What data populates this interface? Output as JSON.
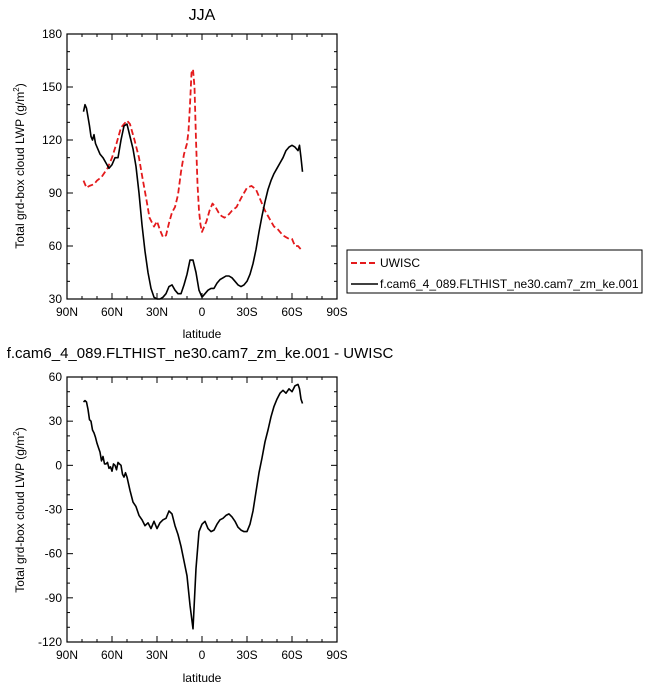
{
  "chart_data": [
    {
      "type": "line",
      "title": "JJA",
      "xlabel": "latitude",
      "ylabel_main": "Total grd-box cloud LWP (g/m",
      "ylabel_sup": "2",
      "ylabel_tail": ")",
      "xlim": [
        90,
        -90
      ],
      "ylim": [
        30,
        180
      ],
      "xticks": [
        {
          "v": 90,
          "label": "90N"
        },
        {
          "v": 60,
          "label": "60N"
        },
        {
          "v": 30,
          "label": "30N"
        },
        {
          "v": 0,
          "label": "0"
        },
        {
          "v": -30,
          "label": "30S"
        },
        {
          "v": -60,
          "label": "60S"
        },
        {
          "v": -90,
          "label": "90S"
        }
      ],
      "yticks": [
        30,
        60,
        90,
        120,
        150,
        180
      ],
      "legend": {
        "placement": "right"
      },
      "series": [
        {
          "name": "UWISC",
          "color": "#e41a1c",
          "dash": "dashed",
          "x": [
            79,
            77,
            75,
            72,
            70,
            67,
            63,
            60,
            57,
            54,
            52,
            50,
            48,
            45,
            42,
            40,
            37,
            35,
            32,
            30,
            28,
            26,
            24,
            22,
            20,
            18,
            16,
            14,
            12,
            10,
            9,
            8,
            7,
            6,
            5,
            4,
            3,
            2,
            1,
            0,
            -1,
            -3,
            -5,
            -7,
            -9,
            -11,
            -13,
            -15,
            -18,
            -20,
            -23,
            -26,
            -28,
            -30,
            -33,
            -36,
            -38,
            -40,
            -42,
            -44,
            -46,
            -48,
            -50,
            -52,
            -54,
            -56,
            -58,
            -60,
            -62,
            -64,
            -66,
            -67
          ],
          "y": [
            97,
            93,
            94,
            95,
            97,
            99,
            104,
            110,
            118,
            127,
            129,
            131,
            129,
            120,
            110,
            100,
            86,
            76,
            71,
            74,
            69,
            65,
            66,
            73,
            79,
            82,
            89,
            102,
            112,
            118,
            125,
            140,
            158,
            160,
            150,
            120,
            95,
            80,
            72,
            68,
            70,
            74,
            80,
            84,
            82,
            79,
            77,
            76,
            78,
            80,
            82,
            87,
            90,
            93,
            94,
            92,
            88,
            84,
            80,
            77,
            74,
            71,
            70,
            68,
            66,
            65,
            64,
            64,
            60,
            60,
            58,
            57
          ]
        },
        {
          "name": "f.cam6_4_089.FLTHIST_ne30.cam7_zm_ke.001",
          "color": "#000000",
          "dash": "solid",
          "x": [
            79,
            78,
            77,
            76,
            75,
            74,
            73,
            72,
            71,
            70,
            68,
            66,
            64,
            62,
            60,
            58,
            56,
            54,
            52,
            50,
            48,
            46,
            44,
            42,
            40,
            38,
            36,
            34,
            32,
            30,
            28,
            26,
            24,
            22,
            20,
            18,
            16,
            14,
            12,
            10,
            8,
            6,
            4,
            2,
            1,
            0,
            -2,
            -4,
            -6,
            -8,
            -10,
            -12,
            -14,
            -16,
            -18,
            -20,
            -22,
            -24,
            -26,
            -28,
            -30,
            -32,
            -34,
            -36,
            -38,
            -40,
            -42,
            -44,
            -46,
            -48,
            -50,
            -52,
            -54,
            -56,
            -58,
            -60,
            -62,
            -64,
            -65,
            -66,
            -67
          ],
          "y": [
            136,
            140,
            138,
            133,
            128,
            122,
            120,
            123,
            118,
            116,
            112,
            110,
            107,
            104,
            106,
            110,
            110,
            120,
            128,
            129,
            122,
            115,
            105,
            90,
            72,
            57,
            45,
            36,
            31,
            30,
            30,
            31,
            33,
            37,
            38,
            35,
            33,
            33,
            38,
            44,
            52,
            52,
            45,
            35,
            33,
            31,
            33,
            35,
            36,
            36,
            39,
            41,
            42,
            43,
            43,
            42,
            40,
            38,
            37,
            38,
            40,
            44,
            50,
            58,
            68,
            77,
            85,
            92,
            97,
            101,
            104,
            107,
            110,
            114,
            116,
            117,
            116,
            114,
            117,
            110,
            102
          ]
        }
      ]
    },
    {
      "type": "line",
      "title": "f.cam6_4_089.FLTHIST_ne30.cam7_zm_ke.001 - UWISC",
      "xlabel": "latitude",
      "ylabel_main": "Total grd-box cloud LWP (g/m",
      "ylabel_sup": "2",
      "ylabel_tail": ")",
      "xlim": [
        90,
        -90
      ],
      "ylim": [
        -120,
        60
      ],
      "xticks": [
        {
          "v": 90,
          "label": "90N"
        },
        {
          "v": 60,
          "label": "60N"
        },
        {
          "v": 30,
          "label": "30N"
        },
        {
          "v": 0,
          "label": "0"
        },
        {
          "v": -30,
          "label": "30S"
        },
        {
          "v": -60,
          "label": "60S"
        },
        {
          "v": -90,
          "label": "90S"
        }
      ],
      "yticks": [
        -120,
        -90,
        -60,
        -30,
        0,
        30,
        60
      ],
      "series": [
        {
          "color": "#000000",
          "dash": "solid",
          "x": [
            79,
            78,
            77,
            76,
            75,
            74,
            73,
            72,
            71,
            70,
            69,
            68,
            67,
            66,
            65,
            64,
            63,
            62,
            61,
            60,
            59,
            58,
            57,
            56,
            55,
            54,
            53,
            52,
            51,
            50,
            48,
            46,
            44,
            42,
            40,
            38,
            36,
            34,
            32,
            30,
            28,
            26,
            24,
            22,
            20,
            18,
            16,
            14,
            12,
            10,
            8,
            6,
            4,
            2,
            0,
            -2,
            -4,
            -6,
            -8,
            -10,
            -12,
            -14,
            -16,
            -18,
            -20,
            -22,
            -24,
            -26,
            -28,
            -30,
            -32,
            -34,
            -36,
            -38,
            -40,
            -42,
            -44,
            -46,
            -48,
            -50,
            -52,
            -54,
            -56,
            -58,
            -60,
            -62,
            -64,
            -65,
            -66,
            -67
          ],
          "y": [
            43,
            44,
            43,
            38,
            31,
            30,
            24,
            22,
            19,
            15,
            12,
            9,
            3,
            6,
            1,
            1,
            2,
            -2,
            -1,
            -4,
            1,
            0,
            -3,
            2,
            1,
            0,
            -6,
            -8,
            -5,
            -8,
            -17,
            -25,
            -28,
            -34,
            -37,
            -41,
            -39,
            -43,
            -38,
            -43,
            -39,
            -37,
            -36,
            -31,
            -33,
            -41,
            -47,
            -55,
            -65,
            -75,
            -95,
            -111,
            -70,
            -45,
            -40,
            -38,
            -43,
            -45,
            -44,
            -40,
            -37,
            -36,
            -34,
            -33,
            -35,
            -38,
            -42,
            -44,
            -45,
            -45,
            -40,
            -31,
            -18,
            -5,
            5,
            16,
            24,
            33,
            40,
            45,
            49,
            51,
            49,
            52,
            50,
            54,
            55,
            52,
            45,
            42
          ]
        }
      ]
    }
  ]
}
